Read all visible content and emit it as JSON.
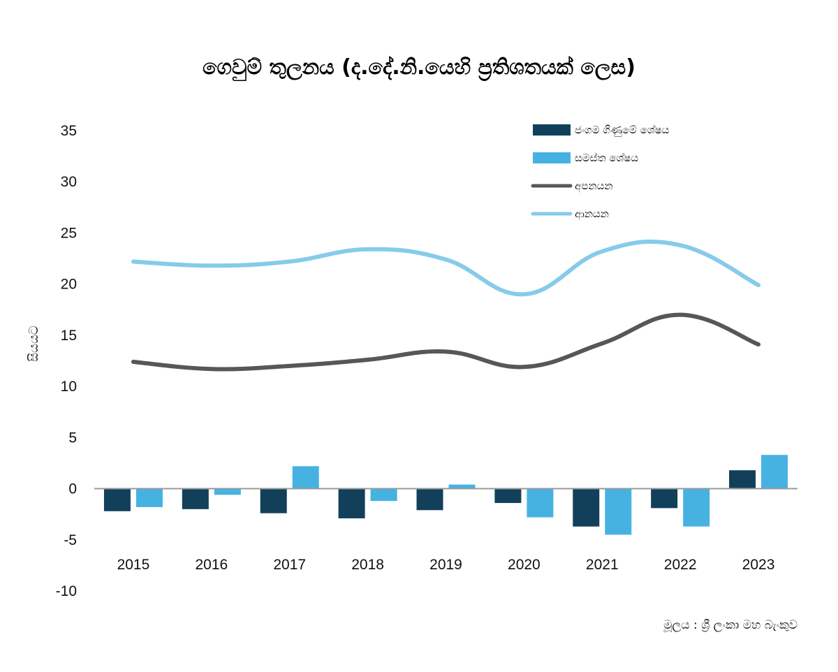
{
  "chart_data": {
    "type": "bar",
    "title": "ගෙවුම් තුලනය (ද.දේ.නි.යෙහි ප්‍රතිශතයක් ලෙස)",
    "ylabel": "සියයට",
    "xlabel": "",
    "ylim": [
      -10,
      35
    ],
    "yticks": [
      35,
      30,
      25,
      20,
      15,
      10,
      5,
      0,
      -5,
      -10
    ],
    "categories": [
      "2015",
      "2016",
      "2017",
      "2018",
      "2019",
      "2020",
      "2021",
      "2022",
      "2023"
    ],
    "series": [
      {
        "name": "ජංගම ගිණුමේ ශේෂය",
        "kind": "bar",
        "color": "#12405a",
        "values": [
          -2.2,
          -2.0,
          -2.4,
          -2.9,
          -2.1,
          -1.4,
          -3.7,
          -1.9,
          1.8
        ]
      },
      {
        "name": "සමස්ත ශේෂය",
        "kind": "bar",
        "color": "#46b2e2",
        "values": [
          -1.8,
          -0.6,
          2.2,
          -1.2,
          0.4,
          -2.8,
          -4.5,
          -3.7,
          3.3
        ]
      },
      {
        "name": "අපනයන",
        "kind": "line",
        "color": "#555759",
        "values": [
          12.4,
          11.7,
          12.0,
          12.6,
          13.4,
          11.9,
          14.2,
          17.0,
          14.1
        ]
      },
      {
        "name": "ආනයන",
        "kind": "line",
        "color": "#86cbea",
        "values": [
          22.2,
          21.8,
          22.2,
          23.4,
          22.4,
          19.0,
          23.2,
          23.8,
          19.9
        ]
      }
    ],
    "legend_position": "top-right",
    "grid": false
  },
  "source": "මූලය : ශ්‍රී ලංකා මහ බැංකුව"
}
